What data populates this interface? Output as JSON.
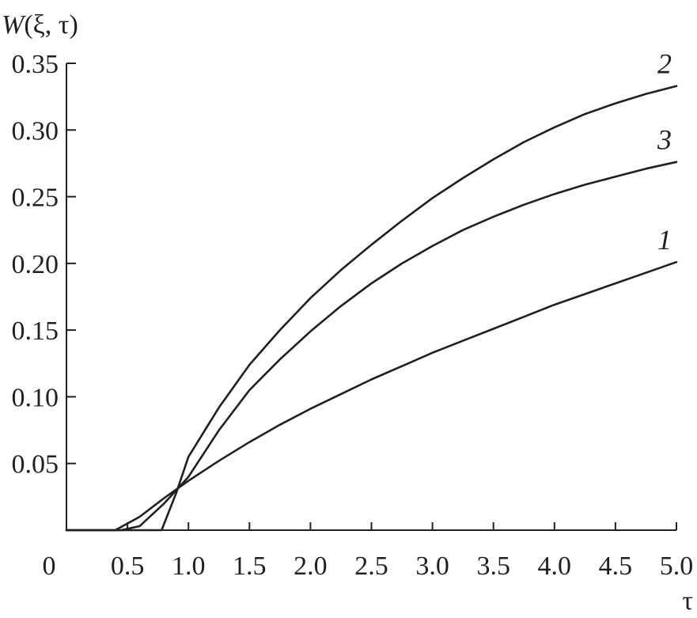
{
  "chart_data": {
    "type": "line",
    "title": "",
    "xlabel": "τ",
    "ylabel": "W(ξ, τ)",
    "ylabel_parts": {
      "italic": "W",
      "rest": "(ξ, τ)"
    },
    "xlim": [
      0,
      5.0
    ],
    "ylim": [
      0,
      0.35
    ],
    "x_ticks": [
      {
        "value": 0.0,
        "label": "0"
      },
      {
        "value": 0.5,
        "label": "0.5"
      },
      {
        "value": 1.0,
        "label": "1.0"
      },
      {
        "value": 1.5,
        "label": "1.5"
      },
      {
        "value": 2.0,
        "label": "2.0"
      },
      {
        "value": 2.5,
        "label": "2.5"
      },
      {
        "value": 3.0,
        "label": "3.0"
      },
      {
        "value": 3.5,
        "label": "3.5"
      },
      {
        "value": 4.0,
        "label": "4.0"
      },
      {
        "value": 4.5,
        "label": "4.5"
      },
      {
        "value": 5.0,
        "label": "5.0"
      }
    ],
    "y_ticks": [
      {
        "value": 0.05,
        "label": "0.05"
      },
      {
        "value": 0.1,
        "label": "0.10"
      },
      {
        "value": 0.15,
        "label": "0.15"
      },
      {
        "value": 0.2,
        "label": "0.20"
      },
      {
        "value": 0.25,
        "label": "0.25"
      },
      {
        "value": 0.3,
        "label": "0.30"
      },
      {
        "value": 0.35,
        "label": "0.35"
      }
    ],
    "grid": false,
    "legend": "none",
    "series": [
      {
        "name": "1",
        "color": "#231f20",
        "x": [
          0,
          0.4,
          0.6,
          0.8,
          1.0,
          1.25,
          1.5,
          1.75,
          2.0,
          2.25,
          2.5,
          2.75,
          3.0,
          3.25,
          3.5,
          3.75,
          4.0,
          4.25,
          4.5,
          4.75,
          5.0
        ],
        "y": [
          0,
          0,
          0.01,
          0.024,
          0.037,
          0.052,
          0.066,
          0.079,
          0.091,
          0.102,
          0.113,
          0.123,
          0.133,
          0.142,
          0.151,
          0.16,
          0.169,
          0.177,
          0.185,
          0.193,
          0.201
        ]
      },
      {
        "name": "2",
        "color": "#231f20",
        "x": [
          0,
          0.78,
          0.9,
          1.0,
          1.25,
          1.5,
          1.75,
          2.0,
          2.25,
          2.5,
          2.75,
          3.0,
          3.25,
          3.5,
          3.75,
          4.0,
          4.25,
          4.5,
          4.75,
          5.0
        ],
        "y": [
          0,
          0,
          0.028,
          0.055,
          0.092,
          0.124,
          0.15,
          0.174,
          0.195,
          0.214,
          0.232,
          0.249,
          0.264,
          0.278,
          0.291,
          0.302,
          0.312,
          0.32,
          0.327,
          0.333
        ]
      },
      {
        "name": "3",
        "color": "#231f20",
        "x": [
          0,
          0.45,
          0.6,
          0.8,
          1.0,
          1.25,
          1.5,
          1.75,
          2.0,
          2.25,
          2.5,
          2.75,
          3.0,
          3.25,
          3.5,
          3.75,
          4.0,
          4.25,
          4.5,
          4.75,
          5.0
        ],
        "y": [
          0,
          0,
          0.003,
          0.02,
          0.04,
          0.075,
          0.105,
          0.128,
          0.149,
          0.168,
          0.185,
          0.2,
          0.213,
          0.225,
          0.235,
          0.244,
          0.252,
          0.259,
          0.265,
          0.271,
          0.276
        ]
      }
    ]
  }
}
